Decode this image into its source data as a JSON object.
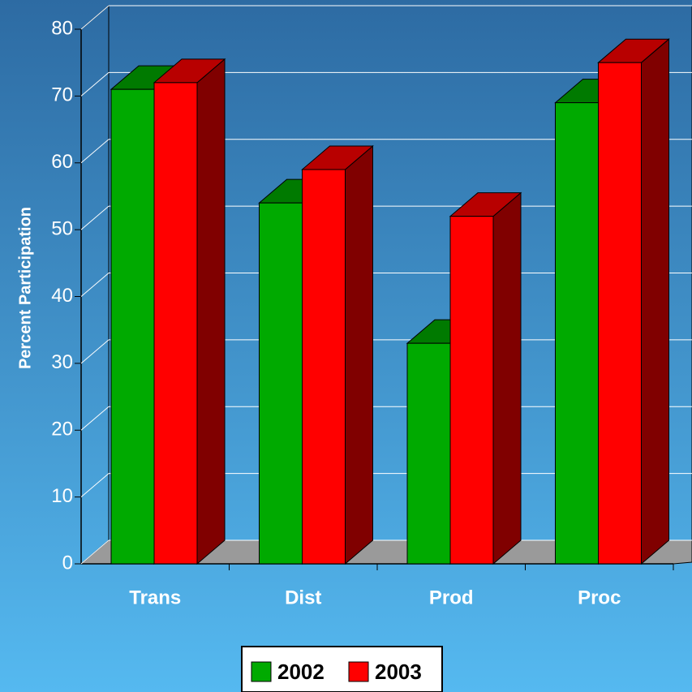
{
  "chart_data": {
    "type": "bar",
    "y_label": "Percent Participation",
    "categories": [
      "Trans",
      "Dist",
      "Prod",
      "Proc"
    ],
    "series": [
      {
        "name": "2002",
        "color": "#00aa00",
        "values": [
          71,
          54,
          33,
          69
        ]
      },
      {
        "name": "2003",
        "color": "#ff0000",
        "values": [
          72,
          59,
          52,
          75
        ]
      }
    ],
    "ylim": [
      0,
      80
    ],
    "yticks": [
      0,
      10,
      20,
      30,
      40,
      50,
      60,
      70,
      80
    ],
    "grid": true,
    "legend": "bottom"
  }
}
